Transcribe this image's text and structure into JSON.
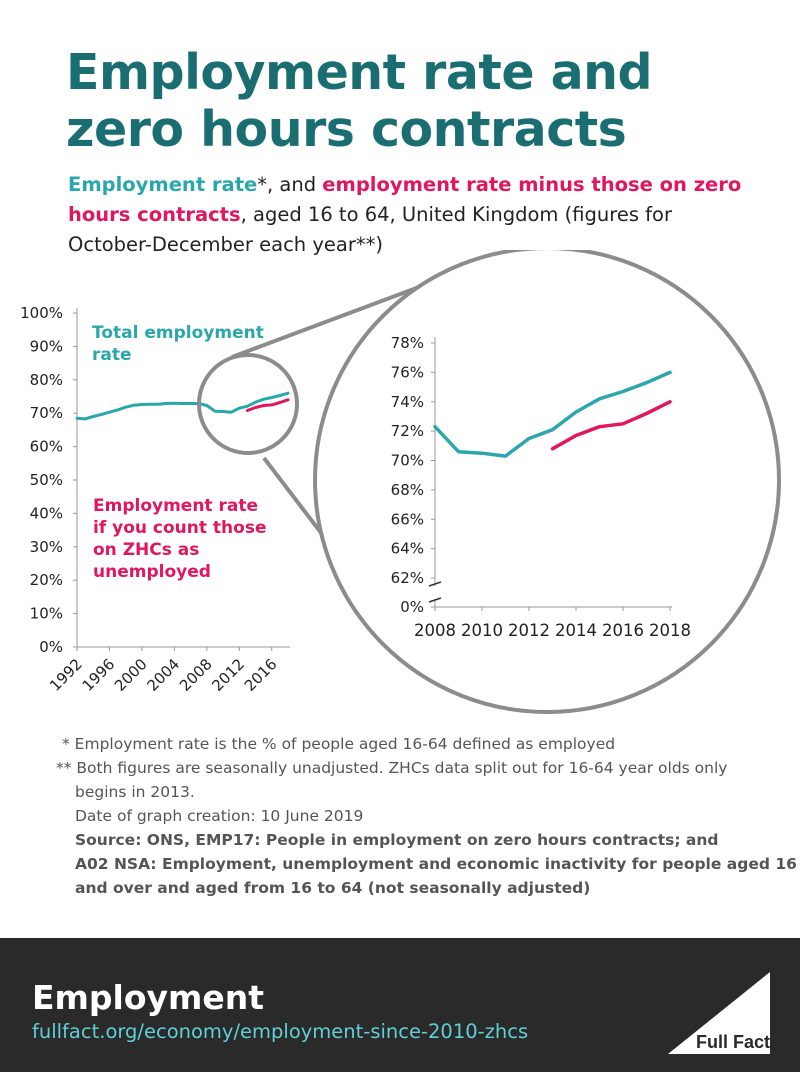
{
  "title_line1": "Employment rate and",
  "title_line2": "zero hours contracts",
  "subtitle": {
    "part1": "Employment rate",
    "part2": "*, and ",
    "part3": "employment rate minus those on zero hours contracts",
    "part4": ", aged 16 to 64, United Kingdom (figures for October-December each year**)"
  },
  "colors": {
    "teal": "#2aa7ad",
    "pink": "#e2165e",
    "title": "#1a6e72",
    "footer_bg": "#2a2a2a",
    "footer_link": "#5fd0d6"
  },
  "chart_data": [
    {
      "type": "line",
      "title": "",
      "xlabel": "",
      "ylabel": "",
      "ylim": [
        0,
        100
      ],
      "yticks": [
        "0%",
        "10%",
        "20%",
        "30%",
        "40%",
        "50%",
        "60%",
        "70%",
        "80%",
        "90%",
        "100%"
      ],
      "xticks": [
        "1992",
        "1996",
        "2000",
        "2004",
        "2008",
        "2012",
        "2016"
      ],
      "grid": false,
      "annotations": [
        "Total employment rate",
        "Employment rate if you count those on ZHCs as unemployed"
      ],
      "series": [
        {
          "name": "Total employment rate",
          "color": "#2aa7ad",
          "x": [
            1992,
            1993,
            1994,
            1995,
            1996,
            1997,
            1998,
            1999,
            2000,
            2001,
            2002,
            2003,
            2004,
            2005,
            2006,
            2007,
            2008,
            2009,
            2010,
            2011,
            2012,
            2013,
            2014,
            2015,
            2016,
            2017,
            2018
          ],
          "y": [
            68.5,
            68.3,
            69.0,
            69.6,
            70.3,
            71.0,
            71.8,
            72.4,
            72.6,
            72.7,
            72.7,
            72.9,
            73.0,
            72.9,
            72.9,
            72.9,
            72.3,
            70.6,
            70.5,
            70.3,
            71.5,
            72.1,
            73.3,
            74.2,
            74.7,
            75.3,
            76.0
          ]
        },
        {
          "name": "Employment rate if you count those on ZHCs as unemployed",
          "color": "#e2165e",
          "x": [
            2013,
            2014,
            2015,
            2016,
            2017,
            2018
          ],
          "y": [
            70.8,
            71.7,
            72.3,
            72.5,
            73.2,
            74.0
          ]
        }
      ]
    },
    {
      "type": "line",
      "title": "",
      "xlabel": "",
      "ylabel": "",
      "ylim": [
        62,
        78
      ],
      "yticks": [
        "0%",
        "62%",
        "64%",
        "66%",
        "68%",
        "70%",
        "72%",
        "74%",
        "76%",
        "78%"
      ],
      "xticks": [
        "2008",
        "2010",
        "2012",
        "2014",
        "2016",
        "2018"
      ],
      "axis_break": true,
      "grid": false,
      "series": [
        {
          "name": "Total employment rate",
          "color": "#2aa7ad",
          "x": [
            2008,
            2009,
            2010,
            2011,
            2012,
            2013,
            2014,
            2015,
            2016,
            2017,
            2018
          ],
          "y": [
            72.3,
            70.6,
            70.5,
            70.3,
            71.5,
            72.1,
            73.3,
            74.2,
            74.7,
            75.3,
            76.0
          ]
        },
        {
          "name": "Employment rate if you count those on ZHCs as unemployed",
          "color": "#e2165e",
          "x": [
            2013,
            2014,
            2015,
            2016,
            2017,
            2018
          ],
          "y": [
            70.8,
            71.7,
            72.3,
            72.5,
            73.2,
            74.0
          ]
        }
      ]
    }
  ],
  "labels": {
    "total_line1": "Total employment",
    "total_line2": "rate",
    "zhc_line1": "Employment rate",
    "zhc_line2": "if you count those",
    "zhc_line3": "on ZHCs as",
    "zhc_line4": "unemployed"
  },
  "footnotes": {
    "note1": "* Employment rate is the % of people aged 16-64 defined as employed",
    "note2a": "** Both figures are seasonally unadjusted. ZHCs data split out for 16-64 year olds only",
    "note2b": "begins in 2013.",
    "date": "Date of graph creation: 10 June 2019",
    "source1": "Source: ONS, EMP17: People in employment on zero hours contracts; and",
    "source2": "A02 NSA: Employment, unemployment and economic inactivity for people aged 16",
    "source3": "and over and aged from 16 to 64 (not seasonally adjusted)"
  },
  "footer": {
    "title": "Employment",
    "url": "fullfact.org/economy/employment-since-2010-zhcs",
    "logo_text": "Full Fact"
  }
}
